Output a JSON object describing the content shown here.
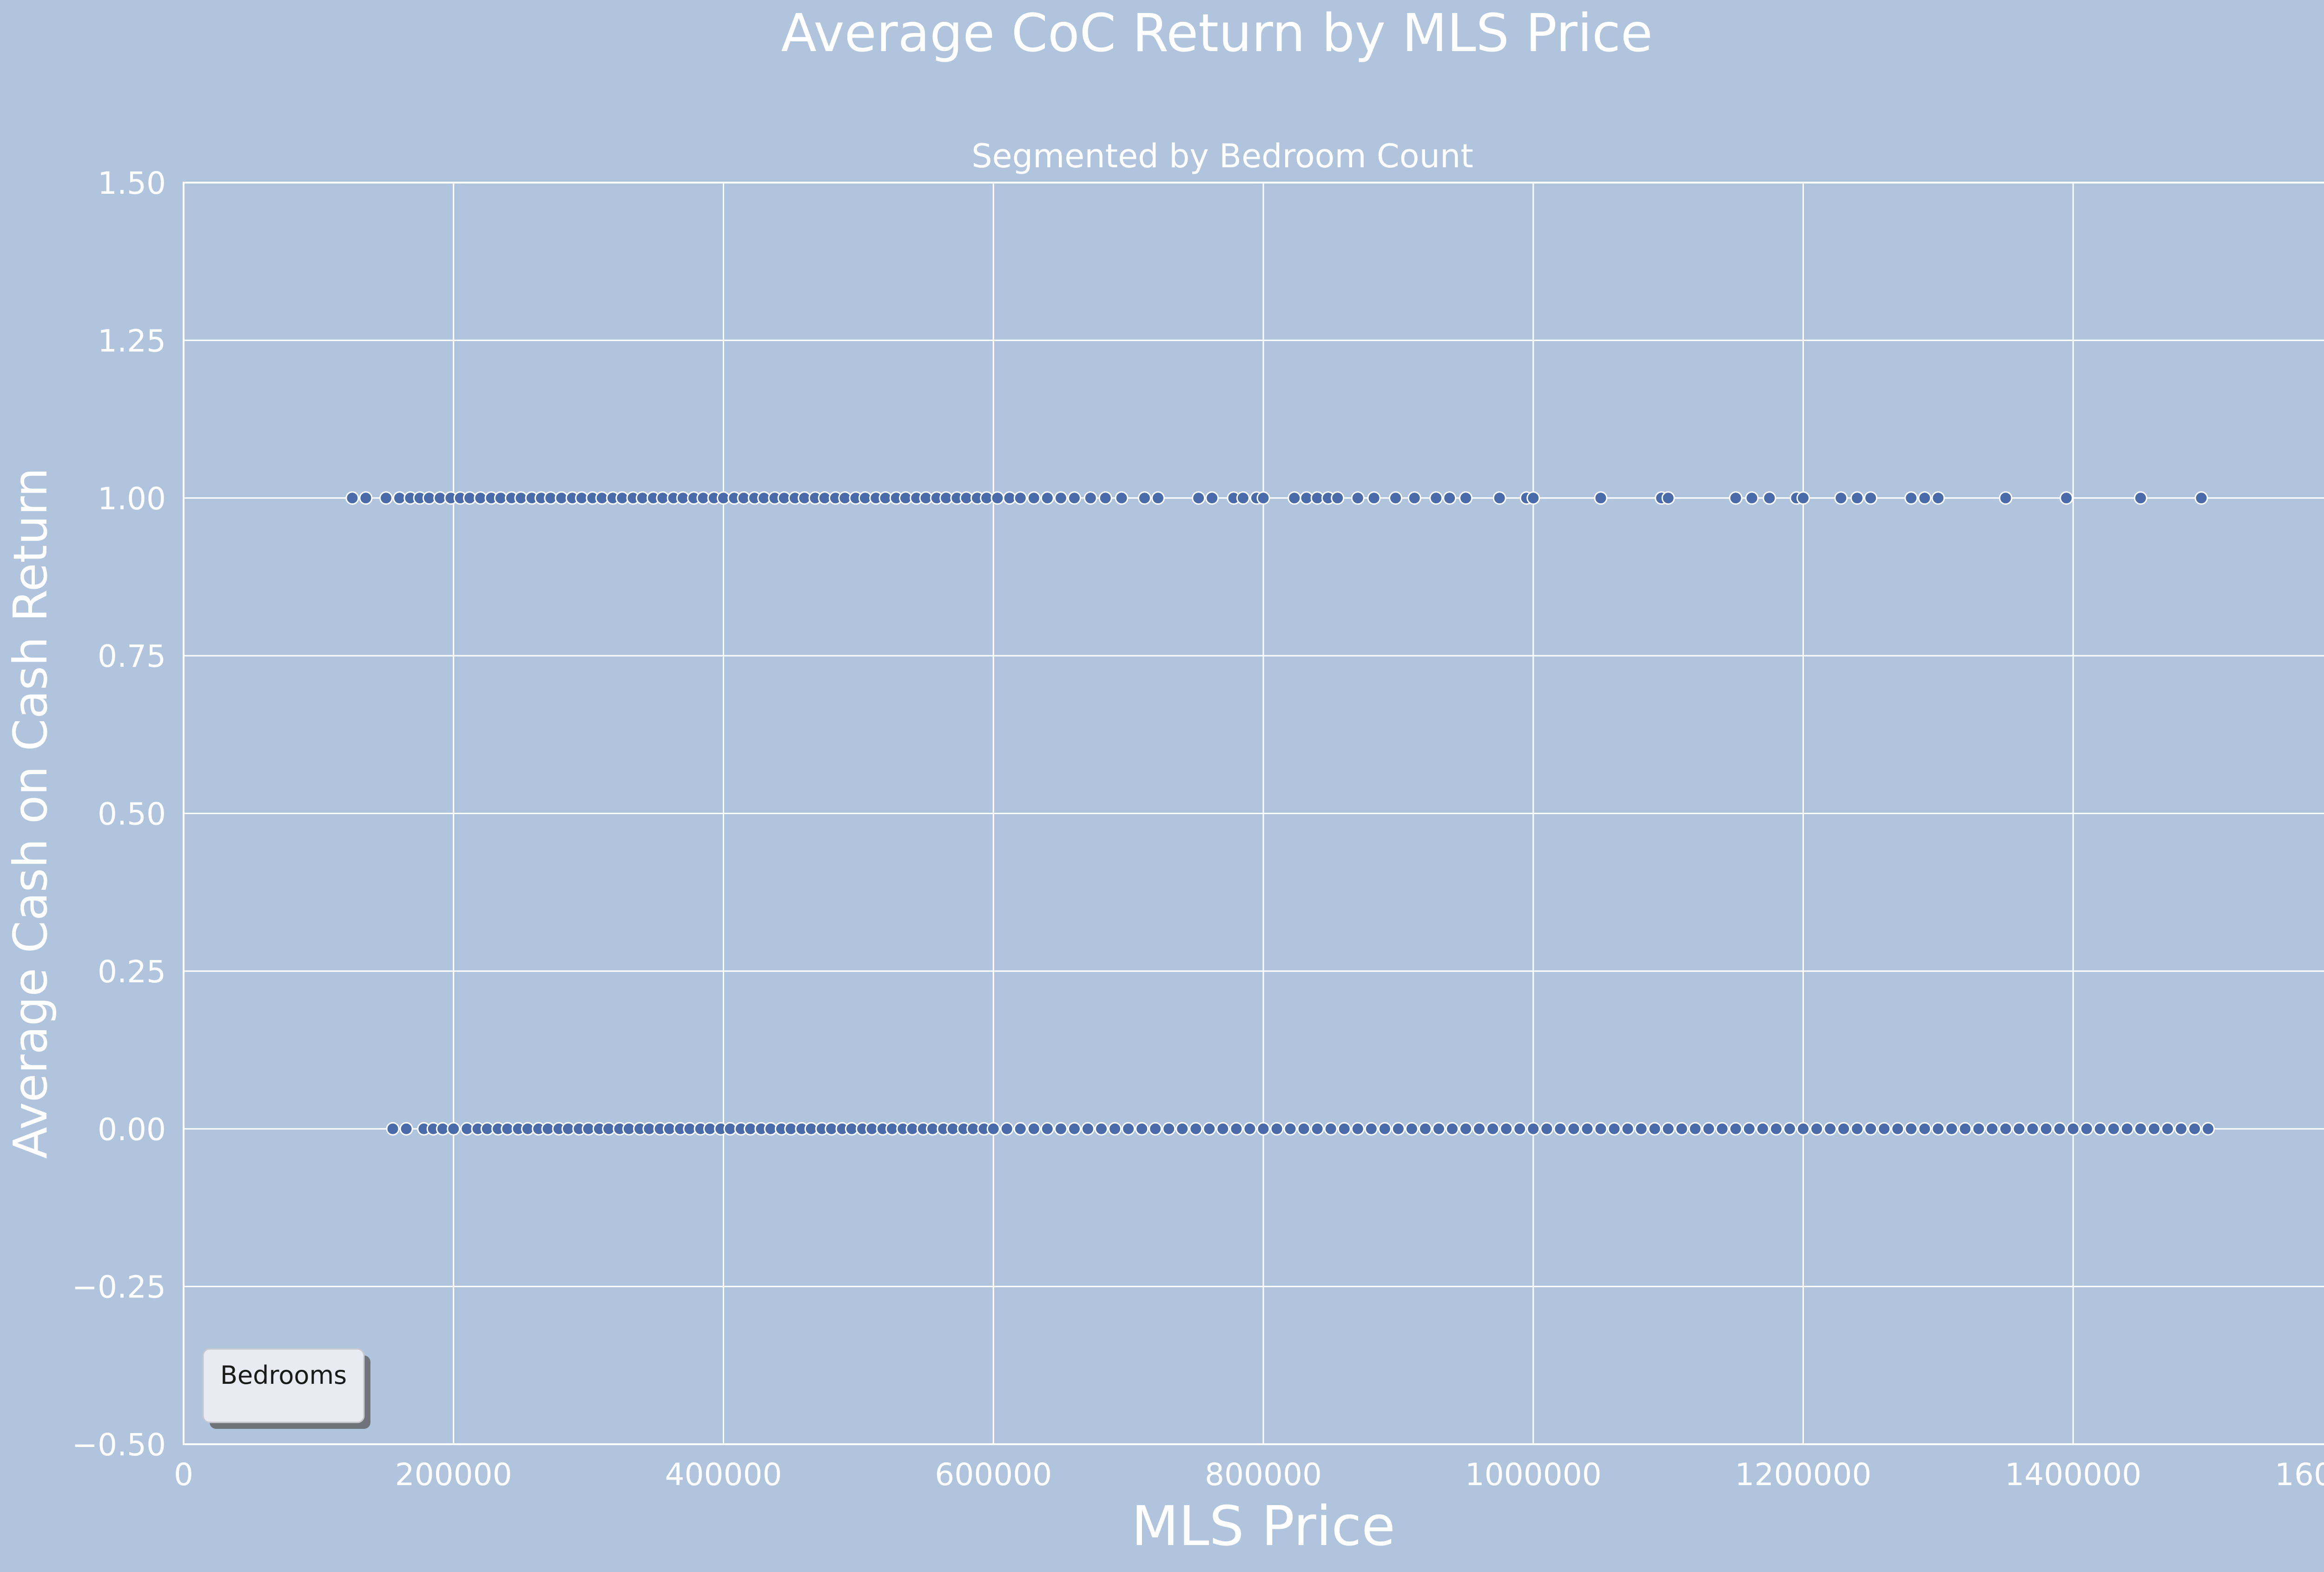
{
  "chart_data": {
    "type": "scatter",
    "title": "Average CoC Return by MLS Price",
    "subtitle": "Segmented by Bedroom Count",
    "xlabel": "MLS Price",
    "ylabel": "Average Cash on Cash Return",
    "xlim": [
      0,
      1600000
    ],
    "ylim": [
      -0.5,
      1.5
    ],
    "xticks": [
      "0",
      "200000",
      "400000",
      "600000",
      "800000",
      "1000000",
      "1200000",
      "1400000",
      "1600000"
    ],
    "yticks": [
      "1.50",
      "1.25",
      "1.00",
      "0.75",
      "0.50",
      "0.25",
      "0.00",
      "−0.25",
      "−0.50"
    ],
    "grid": true,
    "legend": {
      "title": "Bedrooms",
      "position": "lower-left"
    },
    "colors": {
      "background": "#b0c4de",
      "marker": "#4a6baa",
      "marker_edge": "#ffffff",
      "grid": "#ffffff",
      "legend_bg": "#eaeaf2"
    },
    "series": [
      {
        "y": 1.0,
        "x": [
          125000,
          135000,
          150000,
          160000,
          168000,
          175000,
          182000,
          190000,
          198000,
          205000,
          212000,
          220000,
          228000,
          235000,
          243000,
          250000,
          258000,
          265000,
          272000,
          280000,
          288000,
          295000,
          303000,
          310000,
          318000,
          325000,
          333000,
          340000,
          348000,
          355000,
          363000,
          370000,
          378000,
          385000,
          393000,
          400000,
          408000,
          415000,
          423000,
          430000,
          438000,
          445000,
          453000,
          460000,
          468000,
          475000,
          483000,
          490000,
          498000,
          505000,
          513000,
          520000,
          528000,
          535000,
          543000,
          550000,
          558000,
          565000,
          573000,
          580000,
          588000,
          595000,
          603000,
          612000,
          620000,
          630000,
          640000,
          650000,
          660000,
          672000,
          683000,
          695000,
          712000,
          722000,
          752000,
          762000,
          778000,
          785000,
          795000,
          800000,
          823000,
          832000,
          840000,
          848000,
          855000,
          870000,
          882000,
          898000,
          912000,
          928000,
          938000,
          950000,
          975000,
          995000,
          1000000,
          1050000,
          1095000,
          1100000,
          1150000,
          1162000,
          1175000,
          1195000,
          1200000,
          1228000,
          1240000,
          1250000,
          1280000,
          1290000,
          1300000,
          1350000,
          1395000,
          1450000,
          1495000
        ]
      },
      {
        "y": 0.0,
        "x": [
          155000,
          165000,
          178000,
          185000,
          192000,
          200000,
          210000,
          218000,
          225000,
          233000,
          240000,
          248000,
          255000,
          263000,
          270000,
          278000,
          285000,
          293000,
          300000,
          308000,
          315000,
          323000,
          330000,
          338000,
          345000,
          353000,
          360000,
          368000,
          375000,
          383000,
          390000,
          398000,
          405000,
          413000,
          420000,
          428000,
          435000,
          443000,
          450000,
          458000,
          465000,
          473000,
          480000,
          488000,
          495000,
          503000,
          510000,
          518000,
          525000,
          533000,
          540000,
          548000,
          555000,
          563000,
          570000,
          578000,
          585000,
          593000,
          600000,
          610000,
          620000,
          630000,
          640000,
          650000,
          660000,
          670000,
          680000,
          690000,
          700000,
          710000,
          720000,
          730000,
          740000,
          750000,
          760000,
          770000,
          780000,
          790000,
          800000,
          810000,
          820000,
          830000,
          840000,
          850000,
          860000,
          870000,
          880000,
          890000,
          900000,
          910000,
          920000,
          930000,
          940000,
          950000,
          960000,
          970000,
          980000,
          990000,
          1000000,
          1010000,
          1020000,
          1030000,
          1040000,
          1050000,
          1060000,
          1070000,
          1080000,
          1090000,
          1100000,
          1110000,
          1120000,
          1130000,
          1140000,
          1150000,
          1160000,
          1170000,
          1180000,
          1190000,
          1200000,
          1210000,
          1220000,
          1230000,
          1240000,
          1250000,
          1260000,
          1270000,
          1280000,
          1290000,
          1300000,
          1310000,
          1320000,
          1330000,
          1340000,
          1350000,
          1360000,
          1370000,
          1380000,
          1390000,
          1400000,
          1410000,
          1420000,
          1430000,
          1440000,
          1450000,
          1460000,
          1470000,
          1480000,
          1490000,
          1500000
        ]
      }
    ]
  }
}
